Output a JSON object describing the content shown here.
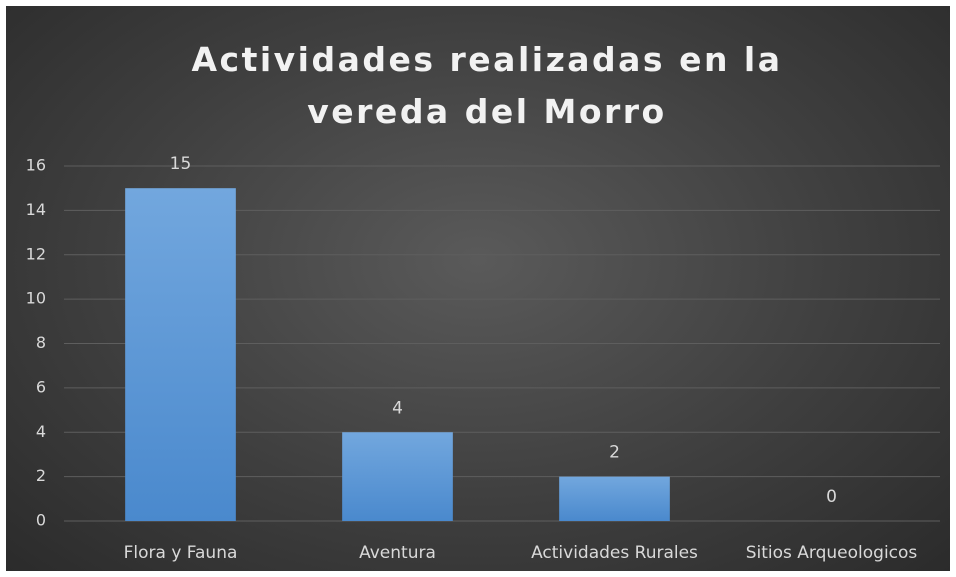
{
  "chart_data": {
    "type": "bar",
    "title": "Actividades realizadas en la vereda del Morro",
    "categories": [
      "Flora y Fauna",
      "Aventura",
      "Actividades Rurales",
      "Sitios Arqueologicos"
    ],
    "values": [
      15,
      4,
      2,
      0
    ],
    "color": "#5b9bd5",
    "ylim": [
      0,
      16
    ],
    "yticks": [
      0,
      2,
      4,
      6,
      8,
      10,
      12,
      14,
      16
    ],
    "grid": true
  }
}
